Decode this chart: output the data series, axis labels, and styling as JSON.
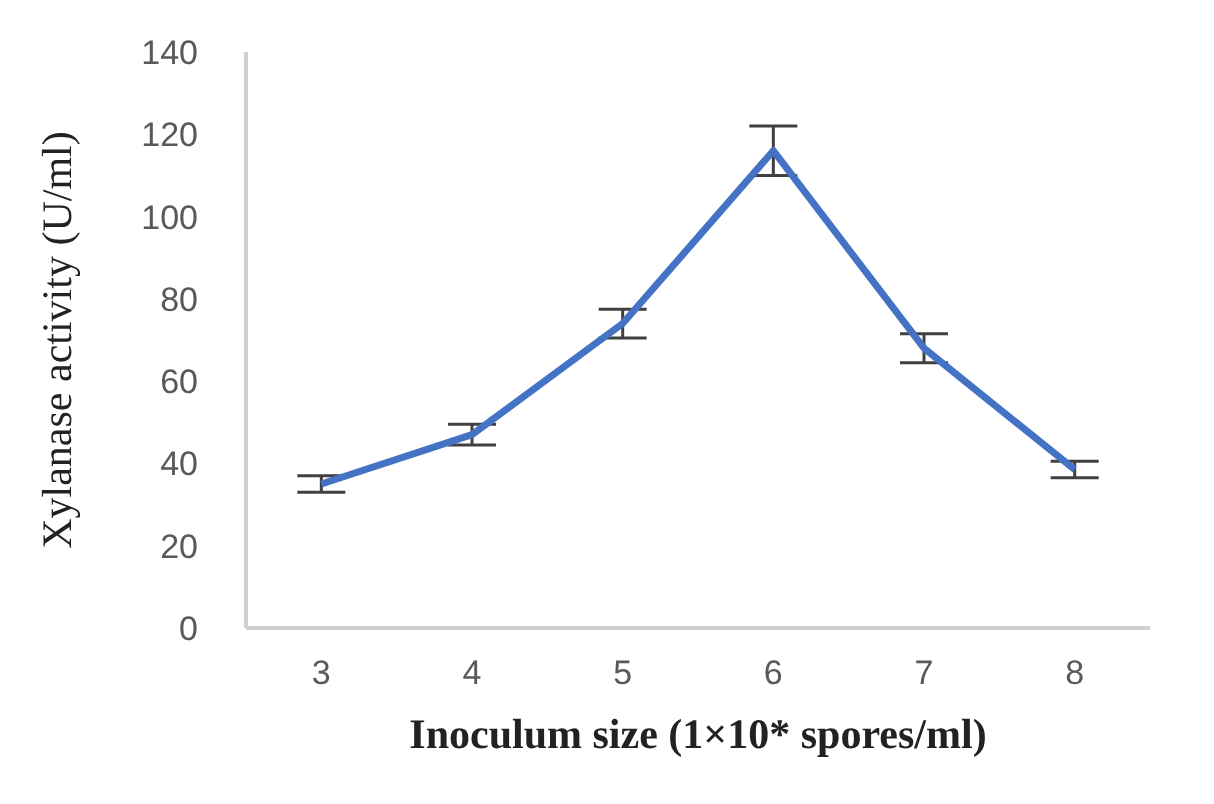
{
  "chart_data": {
    "type": "line",
    "xlabel": "Inoculum size (1×10* spores/ml)",
    "ylabel": "Xylanase activity (U/ml)",
    "categories": [
      "3",
      "4",
      "5",
      "6",
      "7",
      "8"
    ],
    "series": [
      {
        "color": "#4472c4",
        "values": [
          35,
          47,
          74,
          116,
          68,
          38.5
        ],
        "errors": [
          2,
          2.5,
          3.5,
          6,
          3.5,
          2
        ]
      }
    ],
    "ylim": [
      0,
      140
    ],
    "yticks": [
      0,
      20,
      40,
      60,
      80,
      100,
      120,
      140
    ],
    "grid": false,
    "legend": false,
    "marker": "none",
    "line_style": "solid"
  }
}
